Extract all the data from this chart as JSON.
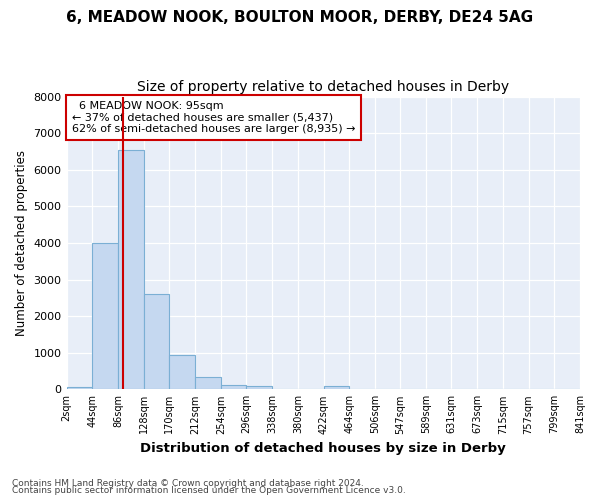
{
  "title1": "6, MEADOW NOOK, BOULTON MOOR, DERBY, DE24 5AG",
  "title2": "Size of property relative to detached houses in Derby",
  "xlabel": "Distribution of detached houses by size in Derby",
  "ylabel": "Number of detached properties",
  "footer1": "Contains HM Land Registry data © Crown copyright and database right 2024.",
  "footer2": "Contains public sector information licensed under the Open Government Licence v3.0.",
  "annotation_title": "6 MEADOW NOOK: 95sqm",
  "annotation_line1": "← 37% of detached houses are smaller (5,437)",
  "annotation_line2": "62% of semi-detached houses are larger (8,935) →",
  "property_size": 95,
  "bin_edges": [
    2,
    44,
    86,
    128,
    170,
    212,
    254,
    296,
    338,
    380,
    422,
    464,
    506,
    547,
    589,
    631,
    673,
    715,
    757,
    799,
    841
  ],
  "bar_heights": [
    50,
    4000,
    6550,
    2600,
    950,
    330,
    130,
    100,
    0,
    0,
    100,
    0,
    0,
    0,
    0,
    0,
    0,
    0,
    0,
    0
  ],
  "bar_color": "#c5d8f0",
  "bar_edge_color": "#7bafd4",
  "vline_color": "#cc0000",
  "annotation_box_color": "#cc0000",
  "ylim": [
    0,
    8000
  ],
  "background_color": "#ffffff",
  "plot_bg_color": "#e8eef8",
  "grid_color": "#ffffff",
  "title1_fontsize": 11,
  "title2_fontsize": 10
}
